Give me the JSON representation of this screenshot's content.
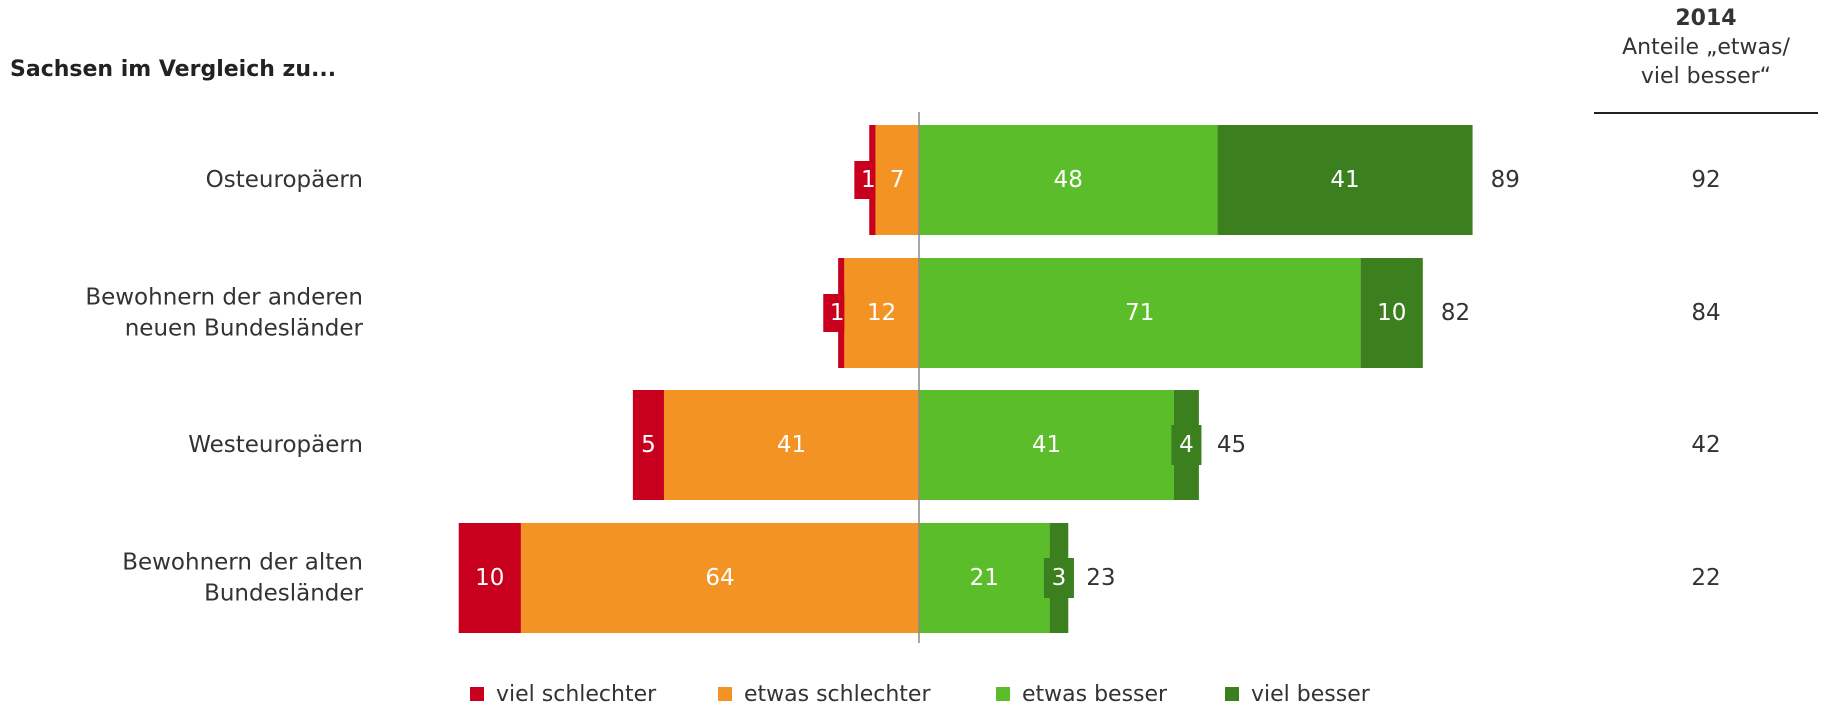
{
  "header": {
    "title": "Sachsen im Vergleich zu...",
    "column_year": "2014",
    "column_label_line1": "Anteile „etwas/",
    "column_label_line2": "viel besser“"
  },
  "colors": {
    "viel_schlechter": "#c8001e",
    "etwas_schlechter": "#f39323",
    "etwas_besser": "#5bbd2a",
    "viel_besser": "#3b7f1e"
  },
  "chart_data": {
    "type": "bar",
    "orientation": "horizontal-diverging",
    "title": "Sachsen im Vergleich zu...",
    "categories": [
      [
        "Osteuropäern"
      ],
      [
        "Bewohnern der anderen",
        "neuen Bundesländer"
      ],
      [
        "Westeuropäern"
      ],
      [
        "Bewohnern der alten",
        "Bundesländer"
      ]
    ],
    "series": [
      {
        "name": "viel schlechter",
        "values": [
          1,
          1,
          5,
          10
        ],
        "color": "#c8001e",
        "side": "negative"
      },
      {
        "name": "etwas schlechter",
        "values": [
          7,
          12,
          41,
          64
        ],
        "color": "#f39323",
        "side": "negative"
      },
      {
        "name": "etwas besser",
        "values": [
          48,
          71,
          41,
          21
        ],
        "color": "#5bbd2a",
        "side": "positive"
      },
      {
        "name": "viel besser",
        "values": [
          41,
          10,
          4,
          3
        ],
        "color": "#3b7f1e",
        "side": "positive"
      }
    ],
    "totals_positive": [
      89,
      82,
      45,
      23
    ],
    "comparison_2014": [
      92,
      84,
      42,
      22
    ],
    "legend": [
      "viel schlechter",
      "etwas schlechter",
      "etwas besser",
      "viel besser"
    ],
    "legend_position": "bottom",
    "grid": false
  }
}
